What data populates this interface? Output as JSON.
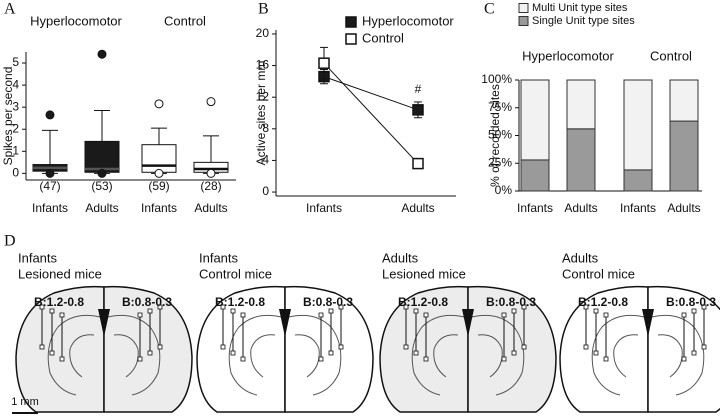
{
  "panel_labels": [
    "A",
    "B",
    "C",
    "D"
  ],
  "chart_data": [
    {
      "type": "box",
      "ylabel": "Spikes per second",
      "ylim": [
        -0.3,
        5.5
      ],
      "yticks": [
        0,
        1,
        2,
        3,
        4,
        5
      ],
      "categories": [
        "Infants",
        "Adults",
        "Infants",
        "Adults"
      ],
      "series": [
        {
          "name": "Hyperlocomotor",
          "color": "#1a1a1a",
          "boxes": [
            {
              "whisker_low": 0,
              "q1": 0.1,
              "median": 0.25,
              "q3": 0.4,
              "whisker_high": 1.95,
              "outliers": [
                2.65,
                0
              ],
              "n_label": "(47)"
            },
            {
              "whisker_low": 0,
              "q1": 0.05,
              "median": 0.2,
              "q3": 1.45,
              "whisker_high": 2.85,
              "outliers": [
                5.4,
                0
              ],
              "n_label": "(53)"
            }
          ]
        },
        {
          "name": "Control",
          "color": "#ffffff",
          "boxes": [
            {
              "whisker_low": 0,
              "q1": 0.05,
              "median": 0.35,
              "q3": 1.3,
              "whisker_high": 2.05,
              "outliers": [
                3.15,
                0
              ],
              "n_label": "(59)"
            },
            {
              "whisker_low": 0,
              "q1": 0.05,
              "median": 0.2,
              "q3": 0.5,
              "whisker_high": 1.7,
              "outliers": [
                3.25,
                0
              ],
              "n_label": "(28)"
            }
          ]
        }
      ]
    },
    {
      "type": "line",
      "ylabel": "Active sites per mm",
      "categories": [
        "Infants",
        "Adults"
      ],
      "ylim": [
        -0.5,
        20.5
      ],
      "yticks": [
        0,
        4,
        8,
        12,
        16,
        20
      ],
      "series": [
        {
          "name": "Hyperlocomotor",
          "color": "#1a1a1a",
          "values": [
            14.6,
            10.4
          ],
          "errors": [
            0.9,
            1.0
          ]
        },
        {
          "name": "Control",
          "color": "#ffffff",
          "values": [
            16.3,
            3.6
          ],
          "errors": [
            2.0,
            0.5
          ]
        }
      ],
      "annotations": [
        "#"
      ]
    },
    {
      "type": "stacked_bar",
      "ylabel": "% of recorded sites",
      "ylim": [
        0,
        100
      ],
      "yticks": [
        {
          "value": 0,
          "label": "0%"
        },
        {
          "value": 25,
          "label": "25%"
        },
        {
          "value": 50,
          "label": "50%"
        },
        {
          "value": 75,
          "label": "75%"
        },
        {
          "value": 100,
          "label": "100%"
        }
      ],
      "groups": [
        "Hyperlocomotor",
        "Control"
      ],
      "categories": [
        "Infants",
        "Adults",
        "Infants",
        "Adults"
      ],
      "series": [
        {
          "name": "Single Unit type sites",
          "color": "#9a9a9a",
          "values": [
            28,
            56,
            19,
            63
          ]
        },
        {
          "name": "Multi Unit type sites",
          "color": "#f2f2f2",
          "values": [
            72,
            44,
            81,
            37
          ]
        }
      ]
    }
  ],
  "panel_d": {
    "groups": [
      {
        "title": [
          "Infants",
          "Lesioned mice"
        ],
        "sections": [
          "B:1.2-0.8",
          "B:0.8-0.3"
        ]
      },
      {
        "title": [
          "Infants",
          "Control mice"
        ],
        "sections": [
          "B:1.2-0.8",
          "B:0.8-0.3"
        ]
      },
      {
        "title": [
          "Adults",
          "Lesioned mice"
        ],
        "sections": [
          "B:1.2-0.8",
          "B:0.8-0.3"
        ]
      },
      {
        "title": [
          "Adults",
          "Control mice"
        ],
        "sections": [
          "B:1.2-0.8",
          "B:0.8-0.3"
        ]
      }
    ],
    "scale_bar": "1 mm"
  }
}
